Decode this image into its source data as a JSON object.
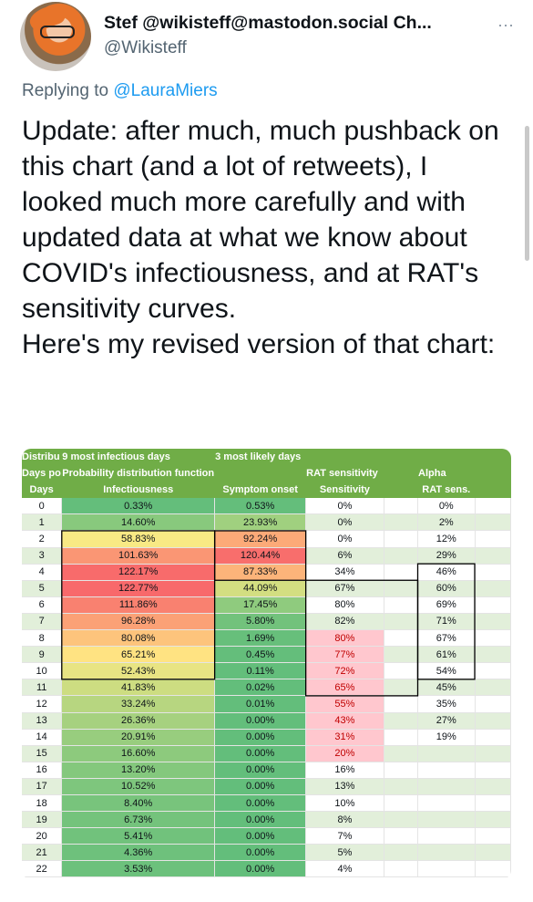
{
  "header": {
    "display_name": "Stef @wikisteff@mastodon.social Ch...",
    "handle": "@Wikisteff",
    "more_icon": "⋯"
  },
  "reply": {
    "prefix": "Replying to ",
    "mention": "@LauraMiers"
  },
  "tweet": {
    "paragraph1": "Update: after much, much pushback on this chart (and a lot of retweets), I looked much more carefully and with updated data at what we know about COVID's infectiousness, and at RAT's sensitivity curves.",
    "paragraph2": "Here's my revised version of that chart:"
  },
  "sheet": {
    "header_rows": [
      [
        "Distribu",
        "9 most infectious days",
        "3 most likely days",
        "",
        "",
        "",
        ""
      ],
      [
        "Days po",
        "Probability distribution function",
        "",
        "RAT sensitivity",
        "",
        "Alpha",
        ""
      ],
      [
        "Days",
        "Infectiousness",
        "Symptom onset",
        "Sensitivity",
        "",
        "RAT sens.",
        ""
      ]
    ],
    "rows": [
      {
        "day": "0",
        "inf": "0.33%",
        "onset": "0.53%",
        "sens": "0%",
        "alpha": "0%"
      },
      {
        "day": "1",
        "inf": "14.60%",
        "onset": "23.93%",
        "sens": "0%",
        "alpha": "2%"
      },
      {
        "day": "2",
        "inf": "58.83%",
        "onset": "92.24%",
        "sens": "0%",
        "alpha": "12%"
      },
      {
        "day": "3",
        "inf": "101.63%",
        "onset": "120.44%",
        "sens": "6%",
        "alpha": "29%"
      },
      {
        "day": "4",
        "inf": "122.17%",
        "onset": "87.33%",
        "sens": "34%",
        "alpha": "46%"
      },
      {
        "day": "5",
        "inf": "122.77%",
        "onset": "44.09%",
        "sens": "67%",
        "alpha": "60%"
      },
      {
        "day": "6",
        "inf": "111.86%",
        "onset": "17.45%",
        "sens": "80%",
        "alpha": "69%"
      },
      {
        "day": "7",
        "inf": "96.28%",
        "onset": "5.80%",
        "sens": "82%",
        "alpha": "71%"
      },
      {
        "day": "8",
        "inf": "80.08%",
        "onset": "1.69%",
        "sens": "80%",
        "alpha": "67%"
      },
      {
        "day": "9",
        "inf": "65.21%",
        "onset": "0.45%",
        "sens": "77%",
        "alpha": "61%"
      },
      {
        "day": "10",
        "inf": "52.43%",
        "onset": "0.11%",
        "sens": "72%",
        "alpha": "54%"
      },
      {
        "day": "11",
        "inf": "41.83%",
        "onset": "0.02%",
        "sens": "65%",
        "alpha": "45%"
      },
      {
        "day": "12",
        "inf": "33.24%",
        "onset": "0.01%",
        "sens": "55%",
        "alpha": "35%"
      },
      {
        "day": "13",
        "inf": "26.36%",
        "onset": "0.00%",
        "sens": "43%",
        "alpha": "27%"
      },
      {
        "day": "14",
        "inf": "20.91%",
        "onset": "0.00%",
        "sens": "31%",
        "alpha": "19%"
      },
      {
        "day": "15",
        "inf": "16.60%",
        "onset": "0.00%",
        "sens": "20%",
        "alpha": ""
      },
      {
        "day": "16",
        "inf": "13.20%",
        "onset": "0.00%",
        "sens": "16%",
        "alpha": ""
      },
      {
        "day": "17",
        "inf": "10.52%",
        "onset": "0.00%",
        "sens": "13%",
        "alpha": ""
      },
      {
        "day": "18",
        "inf": "8.40%",
        "onset": "0.00%",
        "sens": "10%",
        "alpha": ""
      },
      {
        "day": "19",
        "inf": "6.73%",
        "onset": "0.00%",
        "sens": "8%",
        "alpha": ""
      },
      {
        "day": "20",
        "inf": "5.41%",
        "onset": "0.00%",
        "sens": "7%",
        "alpha": ""
      },
      {
        "day": "21",
        "inf": "4.36%",
        "onset": "0.00%",
        "sens": "5%",
        "alpha": ""
      },
      {
        "day": "22",
        "inf": "3.53%",
        "onset": "0.00%",
        "sens": "4%",
        "alpha": ""
      }
    ],
    "pink_sens_days": [
      "8",
      "9",
      "10",
      "11",
      "12",
      "13",
      "14",
      "15"
    ],
    "colors": {
      "header_green": "#70ad47",
      "row_stripe": "#e2efda",
      "red": "#f8696b",
      "yellow": "#ffeb84",
      "green": "#63be7b",
      "pink": "#ffc7ce",
      "pink_text": "#c00000"
    }
  }
}
